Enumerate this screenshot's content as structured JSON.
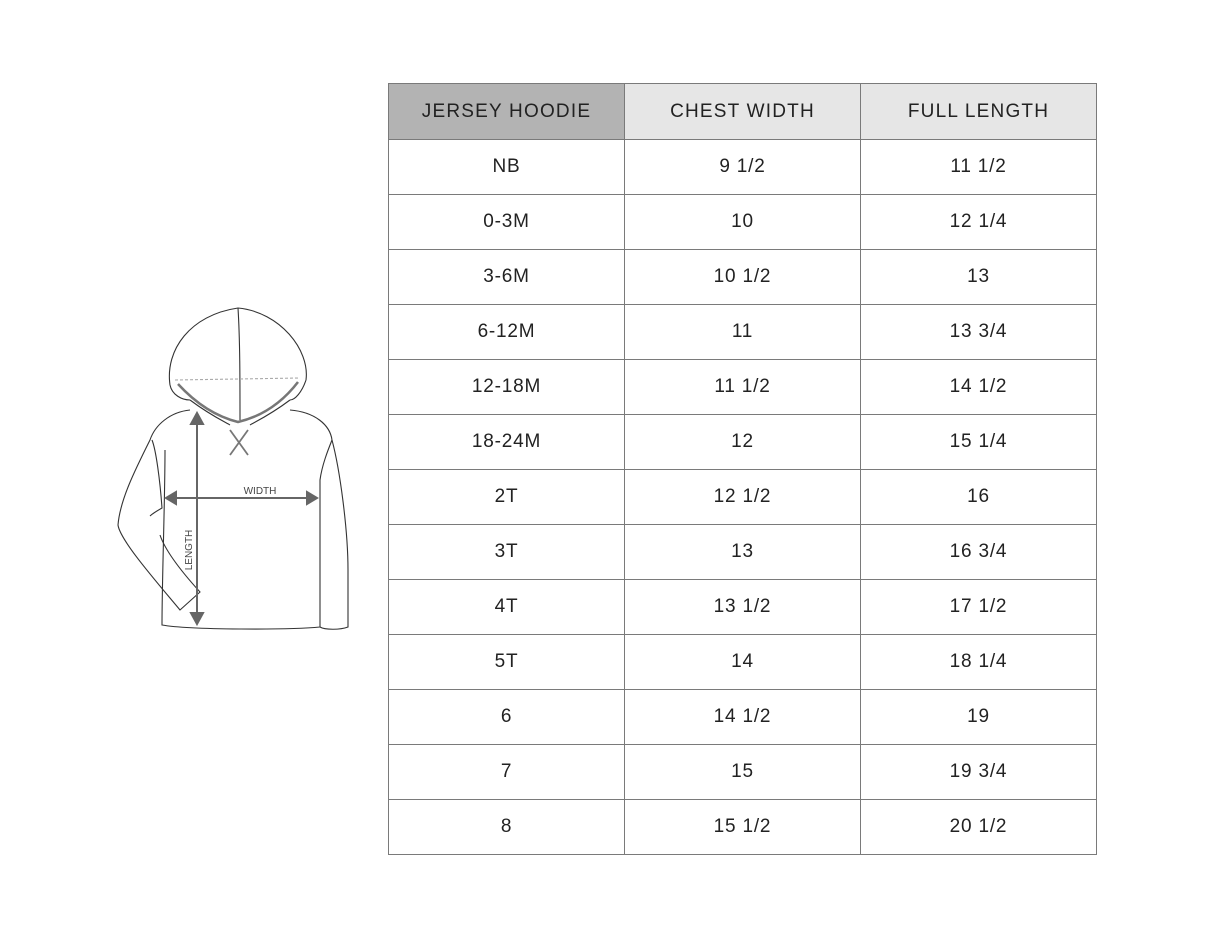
{
  "illustration": {
    "width_label": "WIDTH",
    "length_label": "LENGTH"
  },
  "table": {
    "headers": [
      "JERSEY HOODIE",
      "CHEST WIDTH",
      "FULL LENGTH"
    ],
    "header_colors": [
      "#b3b3b3",
      "#e6e6e6",
      "#e6e6e6"
    ],
    "rows": [
      [
        "NB",
        "9 1/2",
        "11 1/2"
      ],
      [
        "0-3M",
        "10",
        "12 1/4"
      ],
      [
        "3-6M",
        "10 1/2",
        "13"
      ],
      [
        "6-12M",
        "11",
        "13 3/4"
      ],
      [
        "12-18M",
        "11 1/2",
        "14 1/2"
      ],
      [
        "18-24M",
        "12",
        "15 1/4"
      ],
      [
        "2T",
        "12 1/2",
        "16"
      ],
      [
        "3T",
        "13",
        "16 3/4"
      ],
      [
        "4T",
        "13 1/2",
        "17 1/2"
      ],
      [
        "5T",
        "14",
        "18 1/4"
      ],
      [
        "6",
        "14 1/2",
        "19"
      ],
      [
        "7",
        "15",
        "19 3/4"
      ],
      [
        "8",
        "15 1/2",
        "20 1/2"
      ]
    ]
  }
}
